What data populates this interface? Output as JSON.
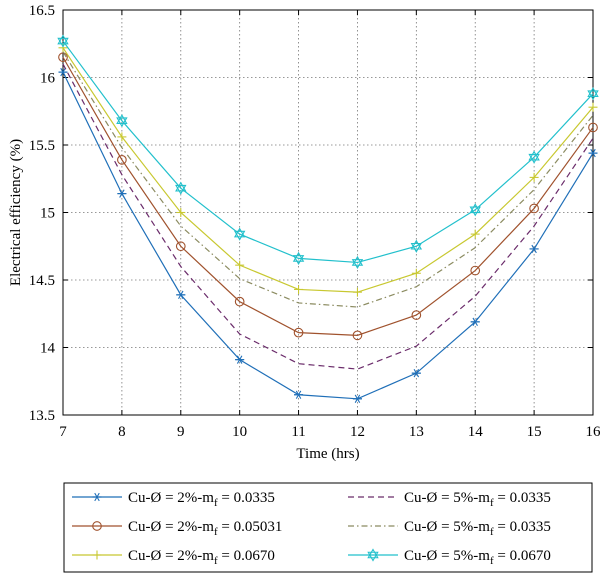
{
  "chart_data": {
    "type": "line",
    "title": "",
    "xlabel": "Time (hrs)",
    "ylabel": "Electrical efficiency (%)",
    "xlim": [
      7,
      16
    ],
    "ylim": [
      13.5,
      16.5
    ],
    "xticks": [
      7,
      8,
      9,
      10,
      11,
      12,
      13,
      14,
      15,
      16
    ],
    "yticks": [
      13.5,
      14,
      14.5,
      15,
      15.5,
      16,
      16.5
    ],
    "xtick_labels": [
      "7",
      "8",
      "9",
      "10",
      "11",
      "12",
      "13",
      "14",
      "15",
      "16"
    ],
    "ytick_labels": [
      "13.5",
      "14",
      "14.5",
      "15",
      "15.5",
      "16",
      "16.5"
    ],
    "grid": true,
    "legend_position": "bottom",
    "x": [
      7,
      8,
      9,
      10,
      11,
      12,
      13,
      14,
      15,
      16
    ],
    "series": [
      {
        "name": "Cu-Ø = 2%-m_f = 0.0335",
        "legend_main": "Cu-Ø = 2%-m",
        "legend_sub": "f",
        "legend_tail": " = 0.0335",
        "color": "#1f6fb8",
        "dash": "solid",
        "marker": "star",
        "values": [
          16.04,
          15.14,
          14.39,
          13.91,
          13.65,
          13.62,
          13.81,
          14.19,
          14.73,
          15.44
        ]
      },
      {
        "name": "Cu-Ø = 2%-m_f = 0.05031",
        "legend_main": "Cu-Ø = 2%-m",
        "legend_sub": "f",
        "legend_tail": " = 0.05031",
        "color": "#a0522d",
        "dash": "solid",
        "marker": "circle",
        "values": [
          16.15,
          15.39,
          14.75,
          14.34,
          14.11,
          14.09,
          14.24,
          14.57,
          15.03,
          15.63
        ]
      },
      {
        "name": "Cu-Ø = 2%-m_f = 0.0670",
        "legend_main": "Cu-Ø = 2%-m",
        "legend_sub": "f",
        "legend_tail": " = 0.0670",
        "color": "#c8c830",
        "dash": "solid",
        "marker": "plus",
        "values": [
          16.22,
          15.56,
          15.0,
          14.61,
          14.43,
          14.41,
          14.55,
          14.84,
          15.26,
          15.78
        ]
      },
      {
        "name": "Cu-Ø = 5%-m_f = 0.0335",
        "legend_main": "Cu-Ø = 5%-m",
        "legend_sub": "f",
        "legend_tail": " = 0.0335",
        "color": "#6b2c6b",
        "dash": "dashed",
        "marker": "none",
        "values": [
          16.1,
          15.28,
          14.6,
          14.1,
          13.88,
          13.84,
          14.01,
          14.38,
          14.9,
          15.55
        ]
      },
      {
        "name": "Cu-Ø = 5%-m_f = 0.0335",
        "legend_main": "Cu-Ø = 5%-m",
        "legend_sub": "f",
        "legend_tail": " = 0.0335",
        "color": "#8b8b60",
        "dash": "dashdot",
        "marker": "none",
        "values": [
          16.19,
          15.48,
          14.9,
          14.51,
          14.33,
          14.3,
          14.45,
          14.74,
          15.17,
          15.72
        ]
      },
      {
        "name": "Cu-Ø = 5%-m_f = 0.0670",
        "legend_main": "Cu-Ø = 5%-m",
        "legend_sub": "f",
        "legend_tail": " = 0.0670",
        "color": "#22c0cc",
        "dash": "solid",
        "marker": "hexagram",
        "values": [
          16.27,
          15.68,
          15.18,
          14.84,
          14.66,
          14.63,
          14.75,
          15.02,
          15.41,
          15.88
        ]
      }
    ]
  }
}
